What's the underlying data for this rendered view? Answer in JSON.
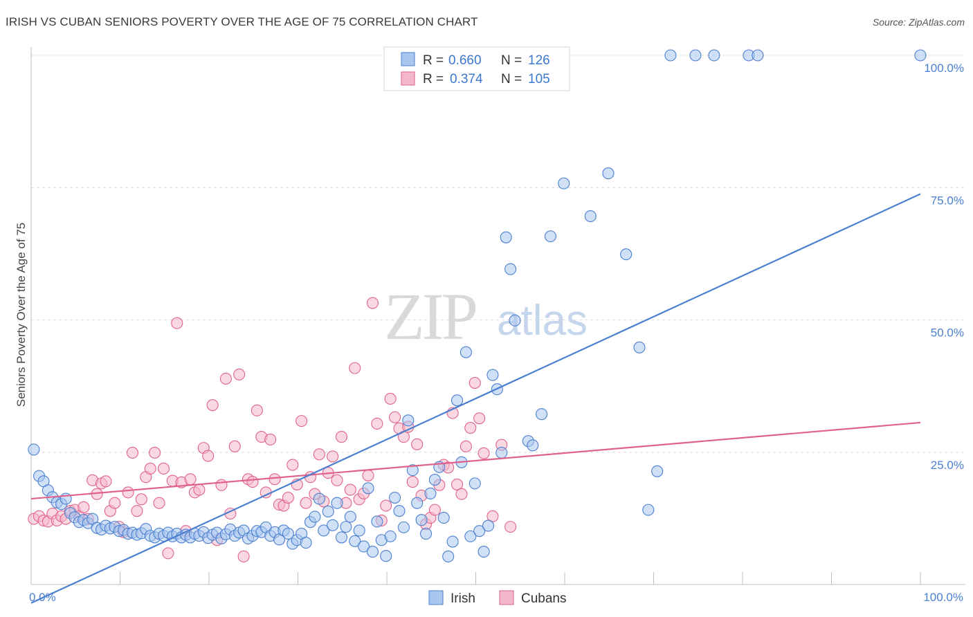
{
  "title": "IRISH VS CUBAN SENIORS POVERTY OVER THE AGE OF 75 CORRELATION CHART",
  "source": "Source: ZipAtlas.com",
  "watermark": {
    "zip": "ZIP",
    "atlas": "atlas"
  },
  "legend": {
    "rows": [
      {
        "r_label": "R = ",
        "r_value": "0.660",
        "n_label": "N = ",
        "n_value": "126"
      },
      {
        "r_label": "R = ",
        "r_value": "0.374",
        "n_label": "N = ",
        "n_value": "105"
      }
    ]
  },
  "bottom_legend": [
    "Irish",
    "Cubans"
  ],
  "colors": {
    "irish": "#4a7fd0",
    "irish_fill": "#a9c6ee",
    "cubans": "#e0628a",
    "cubans_fill": "#f5b8cb",
    "grid": "#dcdcdc"
  },
  "chart_data": {
    "type": "scatter",
    "title": "IRISH VS CUBAN SENIORS POVERTY OVER THE AGE OF 75 CORRELATION CHART",
    "xlabel": "",
    "ylabel": "Seniors Poverty Over the Age of 75",
    "xlim": [
      0,
      100
    ],
    "ylim": [
      0,
      100
    ],
    "x_tick_labels": [
      "0.0%",
      "100.0%"
    ],
    "y_tick_labels": [
      "25.0%",
      "50.0%",
      "75.0%",
      "100.0%"
    ],
    "y_ticks": [
      25,
      50,
      75,
      100
    ],
    "grid": true,
    "legend_position": "top-center",
    "series": [
      {
        "name": "Irish",
        "R": 0.66,
        "N": 126,
        "trendline": {
          "x": [
            0,
            100
          ],
          "y": [
            -3.5,
            73.8
          ]
        },
        "points": [
          [
            0.3,
            25.5
          ],
          [
            0.9,
            20.5
          ],
          [
            1.4,
            19.5
          ],
          [
            1.9,
            17.8
          ],
          [
            2.4,
            16.5
          ],
          [
            2.9,
            15.5
          ],
          [
            3.4,
            15.2
          ],
          [
            3.9,
            16.2
          ],
          [
            4.4,
            13.5
          ],
          [
            4.9,
            12.7
          ],
          [
            5.4,
            11.8
          ],
          [
            5.9,
            12.2
          ],
          [
            6.4,
            11.6
          ],
          [
            6.9,
            12.4
          ],
          [
            7.4,
            10.7
          ],
          [
            7.9,
            10.4
          ],
          [
            8.4,
            11.1
          ],
          [
            8.9,
            10.6
          ],
          [
            9.4,
            10.9
          ],
          [
            9.9,
            10.1
          ],
          [
            10.4,
            10.3
          ],
          [
            10.9,
            9.6
          ],
          [
            11.4,
            9.8
          ],
          [
            11.9,
            9.4
          ],
          [
            12.4,
            9.7
          ],
          [
            12.9,
            10.5
          ],
          [
            13.4,
            9.2
          ],
          [
            13.9,
            8.9
          ],
          [
            14.4,
            9.6
          ],
          [
            14.9,
            9.2
          ],
          [
            15.4,
            9.8
          ],
          [
            15.9,
            9.1
          ],
          [
            16.4,
            9.6
          ],
          [
            16.9,
            8.9
          ],
          [
            17.4,
            9.4
          ],
          [
            17.9,
            8.9
          ],
          [
            18.4,
            9.6
          ],
          [
            18.9,
            9.2
          ],
          [
            19.4,
            9.9
          ],
          [
            19.9,
            8.8
          ],
          [
            20.4,
            9.4
          ],
          [
            20.9,
            9.8
          ],
          [
            21.4,
            8.7
          ],
          [
            21.9,
            9.5
          ],
          [
            22.4,
            10.4
          ],
          [
            22.9,
            9.2
          ],
          [
            23.4,
            9.8
          ],
          [
            23.9,
            10.2
          ],
          [
            24.4,
            8.7
          ],
          [
            24.9,
            9.2
          ],
          [
            25.4,
            10.1
          ],
          [
            25.9,
            9.9
          ],
          [
            26.4,
            10.8
          ],
          [
            26.9,
            9.2
          ],
          [
            27.4,
            9.9
          ],
          [
            27.9,
            8.5
          ],
          [
            28.4,
            10.2
          ],
          [
            28.9,
            9.6
          ],
          [
            29.4,
            7.7
          ],
          [
            29.9,
            8.4
          ],
          [
            30.4,
            9.6
          ],
          [
            30.9,
            7.9
          ],
          [
            31.4,
            11.8
          ],
          [
            31.9,
            12.8
          ],
          [
            32.4,
            16.2
          ],
          [
            32.9,
            10.2
          ],
          [
            33.4,
            13.8
          ],
          [
            33.9,
            11.2
          ],
          [
            34.4,
            15.4
          ],
          [
            34.9,
            8.9
          ],
          [
            35.4,
            10.9
          ],
          [
            35.9,
            12.8
          ],
          [
            36.4,
            8.2
          ],
          [
            36.9,
            10.2
          ],
          [
            37.4,
            7.2
          ],
          [
            37.9,
            18.2
          ],
          [
            38.4,
            6.2
          ],
          [
            38.9,
            11.9
          ],
          [
            39.4,
            8.4
          ],
          [
            39.9,
            5.4
          ],
          [
            40.4,
            9.1
          ],
          [
            40.9,
            16.4
          ],
          [
            41.4,
            13.9
          ],
          [
            41.9,
            10.8
          ],
          [
            42.4,
            31.0
          ],
          [
            42.9,
            21.6
          ],
          [
            43.4,
            15.4
          ],
          [
            43.9,
            12.2
          ],
          [
            44.4,
            9.6
          ],
          [
            44.9,
            17.2
          ],
          [
            45.4,
            19.8
          ],
          [
            45.9,
            22.2
          ],
          [
            46.4,
            12.6
          ],
          [
            46.9,
            5.3
          ],
          [
            47.4,
            8.1
          ],
          [
            47.9,
            34.8
          ],
          [
            48.4,
            23.1
          ],
          [
            48.9,
            43.9
          ],
          [
            49.4,
            9.1
          ],
          [
            49.9,
            19.1
          ],
          [
            50.4,
            10.1
          ],
          [
            50.9,
            6.2
          ],
          [
            51.4,
            11.1
          ],
          [
            51.9,
            39.6
          ],
          [
            52.4,
            36.9
          ],
          [
            52.9,
            24.9
          ],
          [
            53.4,
            65.6
          ],
          [
            53.9,
            59.6
          ],
          [
            54.4,
            49.9
          ],
          [
            55.9,
            27.1
          ],
          [
            56.4,
            26.3
          ],
          [
            57.4,
            32.2
          ],
          [
            58.4,
            65.8
          ],
          [
            59.9,
            75.8
          ],
          [
            62.9,
            69.6
          ],
          [
            64.9,
            77.7
          ],
          [
            66.9,
            62.4
          ],
          [
            68.4,
            44.8
          ],
          [
            69.4,
            14.1
          ],
          [
            70.4,
            21.4
          ],
          [
            71.9,
            100
          ],
          [
            74.7,
            100
          ],
          [
            76.8,
            100
          ],
          [
            80.7,
            100
          ],
          [
            81.7,
            100
          ],
          [
            100,
            100
          ]
        ]
      },
      {
        "name": "Cubans",
        "R": 0.374,
        "N": 105,
        "trendline": {
          "x": [
            0,
            100
          ],
          "y": [
            16.2,
            30.6
          ]
        },
        "points": [
          [
            0.3,
            12.4
          ],
          [
            0.9,
            12.9
          ],
          [
            1.4,
            12.1
          ],
          [
            1.9,
            11.9
          ],
          [
            2.4,
            13.4
          ],
          [
            2.9,
            12.1
          ],
          [
            3.4,
            12.9
          ],
          [
            3.9,
            12.4
          ],
          [
            4.4,
            13.9
          ],
          [
            4.9,
            14.1
          ],
          [
            5.4,
            12.9
          ],
          [
            5.9,
            14.6
          ],
          [
            6.4,
            12.4
          ],
          [
            6.9,
            19.7
          ],
          [
            7.4,
            17.1
          ],
          [
            7.9,
            19.1
          ],
          [
            8.4,
            19.5
          ],
          [
            8.9,
            13.9
          ],
          [
            9.4,
            15.4
          ],
          [
            9.9,
            10.9
          ],
          [
            10.4,
            9.9
          ],
          [
            10.9,
            17.4
          ],
          [
            11.4,
            24.9
          ],
          [
            11.9,
            13.9
          ],
          [
            12.4,
            16.1
          ],
          [
            12.9,
            20.3
          ],
          [
            13.4,
            21.9
          ],
          [
            13.9,
            24.9
          ],
          [
            14.4,
            15.4
          ],
          [
            14.9,
            21.9
          ],
          [
            15.4,
            5.9
          ],
          [
            15.9,
            19.6
          ],
          [
            16.4,
            49.4
          ],
          [
            16.9,
            19.3
          ],
          [
            17.4,
            10.1
          ],
          [
            17.9,
            19.9
          ],
          [
            18.4,
            17.4
          ],
          [
            18.9,
            17.9
          ],
          [
            19.4,
            25.8
          ],
          [
            19.9,
            24.3
          ],
          [
            20.4,
            33.9
          ],
          [
            20.9,
            8.4
          ],
          [
            21.4,
            18.8
          ],
          [
            21.9,
            38.9
          ],
          [
            22.4,
            13.4
          ],
          [
            22.9,
            26.1
          ],
          [
            23.4,
            39.7
          ],
          [
            23.9,
            5.3
          ],
          [
            24.4,
            19.9
          ],
          [
            24.9,
            19.4
          ],
          [
            25.4,
            32.9
          ],
          [
            25.9,
            27.9
          ],
          [
            26.4,
            17.4
          ],
          [
            26.9,
            27.4
          ],
          [
            27.4,
            19.9
          ],
          [
            27.9,
            15.1
          ],
          [
            28.4,
            14.9
          ],
          [
            28.9,
            16.4
          ],
          [
            29.4,
            22.6
          ],
          [
            29.9,
            18.9
          ],
          [
            30.4,
            30.9
          ],
          [
            30.9,
            15.4
          ],
          [
            31.4,
            20.3
          ],
          [
            31.9,
            17.1
          ],
          [
            32.4,
            24.6
          ],
          [
            32.9,
            15.7
          ],
          [
            33.4,
            21.1
          ],
          [
            33.9,
            24.2
          ],
          [
            34.4,
            19.7
          ],
          [
            34.9,
            27.9
          ],
          [
            35.4,
            15.4
          ],
          [
            35.9,
            17.9
          ],
          [
            36.4,
            40.9
          ],
          [
            36.9,
            16.1
          ],
          [
            37.4,
            17.2
          ],
          [
            37.9,
            20.6
          ],
          [
            38.4,
            53.2
          ],
          [
            38.9,
            30.4
          ],
          [
            39.4,
            12.1
          ],
          [
            39.9,
            14.9
          ],
          [
            40.4,
            35.1
          ],
          [
            40.9,
            31.6
          ],
          [
            41.4,
            29.5
          ],
          [
            41.9,
            27.9
          ],
          [
            42.4,
            29.8
          ],
          [
            42.9,
            19.4
          ],
          [
            43.4,
            26.5
          ],
          [
            43.9,
            16.8
          ],
          [
            44.4,
            11.4
          ],
          [
            44.9,
            12.6
          ],
          [
            45.4,
            14.1
          ],
          [
            45.9,
            18.8
          ],
          [
            46.4,
            22.6
          ],
          [
            46.9,
            22.1
          ],
          [
            47.4,
            32.4
          ],
          [
            47.9,
            18.9
          ],
          [
            48.4,
            17.1
          ],
          [
            48.9,
            26.1
          ],
          [
            49.4,
            29.6
          ],
          [
            49.9,
            38.1
          ],
          [
            50.4,
            31.4
          ],
          [
            50.9,
            24.8
          ],
          [
            51.9,
            12.9
          ],
          [
            52.9,
            26.4
          ],
          [
            53.9,
            10.9
          ]
        ]
      }
    ]
  }
}
